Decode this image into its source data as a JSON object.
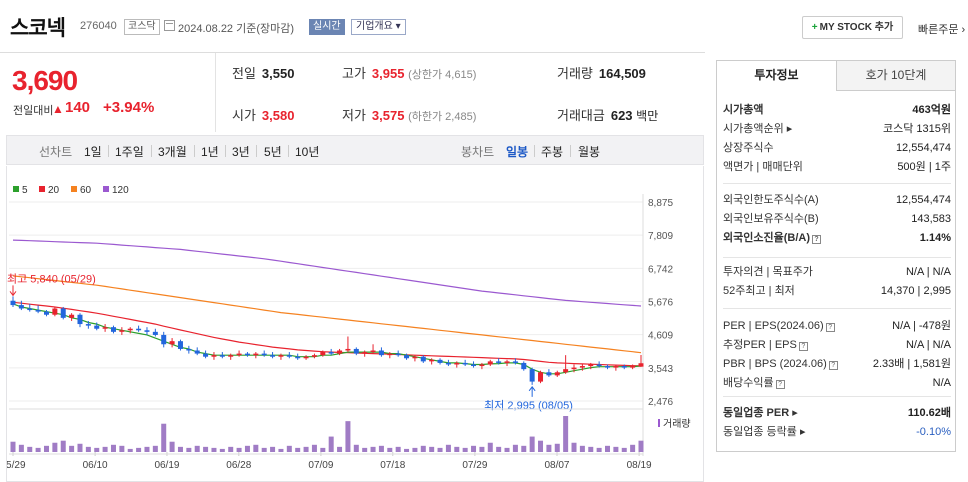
{
  "header": {
    "stock_name": "스코넥",
    "stock_code": "276040",
    "market_badge": "코스닥",
    "date_text": "2024.08.22 기준(장마감)",
    "realtime_badge": "실시간",
    "overview_badge": "기업개요 ▾",
    "mystock_button": "MY STOCK 추가",
    "quick_order": "빠른주문 ›"
  },
  "summary": {
    "price": "3,690",
    "change_label": "전일대비",
    "change_value": "140",
    "change_pct": "+3.94%",
    "prev_close_label": "전일",
    "prev_close": "3,550",
    "high_label": "고가",
    "high": "3,955",
    "upper_limit": "(상한가 4,615)",
    "volume_label": "거래량",
    "volume": "164,509",
    "open_label": "시가",
    "open": "3,580",
    "low_label": "저가",
    "low": "3,575",
    "lower_limit": "(하한가 2,485)",
    "amount_label": "거래대금",
    "amount": "623",
    "amount_unit": "백만"
  },
  "toolbar": {
    "line_chart": "선차트",
    "periods": [
      "1일",
      "1주일",
      "3개월",
      "1년",
      "3년",
      "5년",
      "10년"
    ],
    "candle_chart": "봉차트",
    "candle_periods": [
      "일봉",
      "주봉",
      "월봉"
    ],
    "active_candle": "일봉"
  },
  "chart_data": {
    "type": "candlestick",
    "legend": [
      {
        "name": "5",
        "color": "#2ca02c"
      },
      {
        "name": "20",
        "color": "#e8232e"
      },
      {
        "name": "60",
        "color": "#f58220"
      },
      {
        "name": "120",
        "color": "#9b59d0"
      }
    ],
    "y_ticks": [
      "8,875",
      "7,809",
      "6,742",
      "5,676",
      "4,609",
      "3,543",
      "2,476"
    ],
    "ylim": [
      2476,
      8875
    ],
    "x_ticks": [
      "05/29",
      "06/10",
      "06/19",
      "06/28",
      "07/09",
      "07/18",
      "07/29",
      "08/07",
      "08/19"
    ],
    "high_annotation": "최고 5,840 (05/29)",
    "low_annotation": "최저 2,995 (08/05)",
    "volume_label": "거래량",
    "ohlc": [
      [
        5700,
        5840,
        5500,
        5560
      ],
      [
        5560,
        5700,
        5400,
        5450
      ],
      [
        5450,
        5600,
        5350,
        5400
      ],
      [
        5400,
        5550,
        5300,
        5350
      ],
      [
        5350,
        5400,
        5200,
        5250
      ],
      [
        5250,
        5500,
        5200,
        5450
      ],
      [
        5450,
        5500,
        5100,
        5150
      ],
      [
        5150,
        5300,
        5050,
        5250
      ],
      [
        5250,
        5300,
        4850,
        4950
      ],
      [
        4950,
        5050,
        4800,
        4900
      ],
      [
        4900,
        5000,
        4750,
        4800
      ],
      [
        4800,
        4950,
        4700,
        4850
      ],
      [
        4850,
        4900,
        4650,
        4700
      ],
      [
        4700,
        4850,
        4600,
        4750
      ],
      [
        4750,
        4850,
        4650,
        4800
      ],
      [
        4800,
        4900,
        4700,
        4750
      ],
      [
        4750,
        4850,
        4600,
        4700
      ],
      [
        4700,
        4800,
        4550,
        4600
      ],
      [
        4600,
        4700,
        4200,
        4300
      ],
      [
        4300,
        4500,
        4200,
        4400
      ],
      [
        4400,
        4450,
        4100,
        4150
      ],
      [
        4150,
        4250,
        4000,
        4100
      ],
      [
        4100,
        4200,
        3950,
        4000
      ],
      [
        4000,
        4100,
        3850,
        3900
      ],
      [
        3900,
        4050,
        3800,
        3950
      ],
      [
        3950,
        4050,
        3850,
        3900
      ],
      [
        3900,
        4000,
        3800,
        3950
      ],
      [
        3950,
        4100,
        3900,
        4000
      ],
      [
        4000,
        4050,
        3900,
        3950
      ],
      [
        3950,
        4050,
        3850,
        4000
      ],
      [
        4000,
        4100,
        3900,
        3950
      ],
      [
        3950,
        4050,
        3850,
        3900
      ],
      [
        3900,
        4000,
        3800,
        3950
      ],
      [
        3950,
        4050,
        3850,
        3900
      ],
      [
        3900,
        4000,
        3800,
        3850
      ],
      [
        3850,
        3950,
        3800,
        3900
      ],
      [
        3900,
        4000,
        3850,
        3950
      ],
      [
        3950,
        4100,
        3900,
        4050
      ],
      [
        4050,
        4150,
        3950,
        4000
      ],
      [
        4000,
        4150,
        3950,
        4100
      ],
      [
        4100,
        4550,
        4050,
        4150
      ],
      [
        4150,
        4200,
        3950,
        4000
      ],
      [
        4000,
        4100,
        3900,
        4050
      ],
      [
        4050,
        4300,
        4000,
        4100
      ],
      [
        4100,
        4200,
        3900,
        3950
      ],
      [
        3950,
        4050,
        3850,
        4000
      ],
      [
        4000,
        4100,
        3900,
        3950
      ],
      [
        3950,
        4000,
        3800,
        3850
      ],
      [
        3850,
        3950,
        3750,
        3900
      ],
      [
        3900,
        3950,
        3700,
        3750
      ],
      [
        3750,
        3850,
        3650,
        3800
      ],
      [
        3800,
        3850,
        3650,
        3700
      ],
      [
        3700,
        3800,
        3600,
        3650
      ],
      [
        3650,
        3750,
        3550,
        3700
      ],
      [
        3700,
        3800,
        3600,
        3650
      ],
      [
        3650,
        3750,
        3550,
        3600
      ],
      [
        3600,
        3700,
        3500,
        3650
      ],
      [
        3650,
        3800,
        3600,
        3750
      ],
      [
        3750,
        3850,
        3650,
        3700
      ],
      [
        3700,
        3800,
        3600,
        3750
      ],
      [
        3750,
        3850,
        3650,
        3700
      ],
      [
        3700,
        3750,
        3450,
        3500
      ],
      [
        3500,
        3550,
        2995,
        3100
      ],
      [
        3100,
        3450,
        3050,
        3400
      ],
      [
        3400,
        3500,
        3250,
        3300
      ],
      [
        3300,
        3450,
        3250,
        3400
      ],
      [
        3400,
        3950,
        3350,
        3500
      ],
      [
        3500,
        3650,
        3400,
        3550
      ],
      [
        3550,
        3650,
        3450,
        3600
      ],
      [
        3600,
        3700,
        3500,
        3650
      ],
      [
        3650,
        3750,
        3550,
        3600
      ],
      [
        3600,
        3650,
        3500,
        3550
      ],
      [
        3550,
        3650,
        3450,
        3600
      ],
      [
        3600,
        3650,
        3500,
        3550
      ],
      [
        3550,
        3650,
        3500,
        3600
      ],
      [
        3580,
        3955,
        3575,
        3690
      ]
    ],
    "volume": [
      20,
      14,
      10,
      8,
      12,
      18,
      22,
      12,
      16,
      10,
      8,
      10,
      14,
      12,
      6,
      8,
      10,
      12,
      55,
      20,
      10,
      8,
      12,
      10,
      8,
      6,
      10,
      8,
      12,
      14,
      8,
      10,
      6,
      12,
      8,
      10,
      14,
      8,
      30,
      10,
      60,
      14,
      8,
      10,
      12,
      8,
      10,
      6,
      8,
      12,
      10,
      8,
      14,
      10,
      8,
      12,
      10,
      18,
      10,
      8,
      14,
      12,
      30,
      22,
      14,
      16,
      70,
      18,
      12,
      10,
      8,
      12,
      10,
      8,
      14,
      22
    ],
    "ma5": [
      5600,
      5500,
      5450,
      5400,
      5350,
      5300,
      5250,
      5150,
      5100,
      5000,
      4950,
      4850,
      4800,
      4750,
      4700,
      4650,
      4600,
      4500,
      4400,
      4300,
      4200,
      4150,
      4050,
      4000,
      3950,
      3950,
      3950,
      3950,
      3950,
      3950,
      3950,
      3950,
      3950,
      3950,
      3900,
      3900,
      3900,
      3950,
      3950,
      4000,
      4050,
      4050,
      4050,
      4050,
      4050,
      4000,
      4000,
      3950,
      3900,
      3850,
      3800,
      3750,
      3700,
      3700,
      3680,
      3650,
      3650,
      3670,
      3680,
      3700,
      3700,
      3650,
      3500,
      3400,
      3350,
      3350,
      3400,
      3450,
      3500,
      3550,
      3580,
      3580,
      3580,
      3580,
      3580,
      3600
    ],
    "ma20": [
      5650,
      5620,
      5590,
      5560,
      5530,
      5500,
      5460,
      5420,
      5380,
      5340,
      5300,
      5250,
      5200,
      5150,
      5100,
      5050,
      5000,
      4950,
      4880,
      4820,
      4760,
      4700,
      4640,
      4580,
      4520,
      4470,
      4420,
      4370,
      4330,
      4290,
      4250,
      4210,
      4180,
      4150,
      4120,
      4100,
      4080,
      4060,
      4050,
      4040,
      4030,
      4020,
      4010,
      4000,
      3990,
      3980,
      3970,
      3960,
      3950,
      3940,
      3930,
      3920,
      3910,
      3900,
      3890,
      3880,
      3870,
      3860,
      3850,
      3840,
      3830,
      3810,
      3780,
      3750,
      3720,
      3700,
      3690,
      3680,
      3670,
      3660,
      3650,
      3640,
      3630,
      3620,
      3610,
      3605
    ],
    "ma60": [
      6500,
      6470,
      6440,
      6410,
      6380,
      6350,
      6320,
      6290,
      6260,
      6230,
      6200,
      6160,
      6120,
      6080,
      6040,
      6000,
      5960,
      5920,
      5880,
      5840,
      5800,
      5760,
      5720,
      5680,
      5640,
      5600,
      5560,
      5520,
      5480,
      5440,
      5400,
      5360,
      5320,
      5290,
      5260,
      5230,
      5200,
      5170,
      5140,
      5110,
      5080,
      5050,
      5020,
      4990,
      4960,
      4930,
      4900,
      4870,
      4840,
      4810,
      4780,
      4750,
      4720,
      4690,
      4660,
      4630,
      4600,
      4570,
      4540,
      4510,
      4480,
      4450,
      4420,
      4390,
      4360,
      4330,
      4300,
      4270,
      4240,
      4210,
      4180,
      4150,
      4120,
      4090,
      4060,
      4030
    ],
    "ma120": [
      7650,
      7640,
      7630,
      7620,
      7610,
      7600,
      7590,
      7580,
      7570,
      7560,
      7550,
      7530,
      7510,
      7490,
      7470,
      7450,
      7430,
      7410,
      7390,
      7370,
      7350,
      7320,
      7290,
      7260,
      7230,
      7200,
      7170,
      7140,
      7110,
      7080,
      7050,
      7010,
      6970,
      6930,
      6890,
      6850,
      6810,
      6770,
      6730,
      6690,
      6650,
      6610,
      6570,
      6530,
      6490,
      6450,
      6410,
      6370,
      6330,
      6290,
      6250,
      6210,
      6170,
      6130,
      6090,
      6050,
      6010,
      5980,
      5950,
      5920,
      5890,
      5860,
      5830,
      5800,
      5770,
      5740,
      5710,
      5690,
      5670,
      5650,
      5630,
      5610,
      5590,
      5570,
      5550,
      5530
    ]
  },
  "side_panel": {
    "tab_active": "투자정보",
    "tab_inactive": "호가 10단계",
    "rows1": [
      {
        "k": "시가총액",
        "v": "463억원",
        "bold": true
      },
      {
        "k": "시가총액순위 ▸",
        "v": "코스닥 1315위"
      },
      {
        "k": "상장주식수",
        "v": "12,554,474"
      },
      {
        "k": "액면가 | 매매단위",
        "v": "500원 | 1주"
      }
    ],
    "rows2": [
      {
        "k": "외국인한도주식수(A)",
        "v": "12,554,474"
      },
      {
        "k": "외국인보유주식수(B)",
        "v": "143,583"
      },
      {
        "k": "외국인소진율(B/A)",
        "v": "1.14%",
        "bold": true,
        "help": true
      }
    ],
    "rows3": [
      {
        "k": "투자의견 | 목표주가",
        "v": "N/A | N/A"
      },
      {
        "k": "52주최고 | 최저",
        "v": "14,370 | 2,995"
      }
    ],
    "rows4": [
      {
        "k": "PER | EPS(2024.06)",
        "v": "N/A | -478원",
        "help": true
      },
      {
        "k": "추정PER | EPS",
        "v": "N/A | N/A",
        "help": true
      },
      {
        "k": "PBR | BPS (2024.06)",
        "v": "2.33배 | 1,581원",
        "help": true
      },
      {
        "k": "배당수익률",
        "v": "N/A",
        "help": true
      }
    ],
    "rows5": [
      {
        "k": "동일업종 PER ▸",
        "v": "110.62배",
        "bold": true
      },
      {
        "k": "동일업종 등락률 ▸",
        "v": "-0.10%",
        "blue": true
      }
    ]
  }
}
